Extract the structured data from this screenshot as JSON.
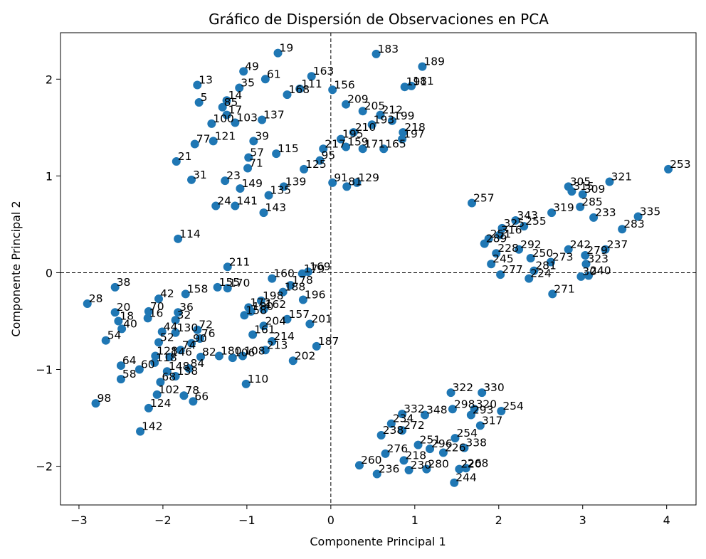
{
  "chart_data": {
    "type": "scatter",
    "title": "Gráfico de Dispersión de Observaciones en PCA",
    "xlabel": "Componente Principal 1",
    "ylabel": "Componente Principal 2",
    "xlim": [
      -3.22,
      4.35
    ],
    "ylim": [
      -2.4,
      2.48
    ],
    "xticks": [
      -3,
      -2,
      -1,
      0,
      1,
      2,
      3,
      4
    ],
    "yticks": [
      -2,
      -1,
      0,
      1,
      2
    ],
    "xtick_labels": [
      "−3",
      "−2",
      "−1",
      "0",
      "1",
      "2",
      "3",
      "4"
    ],
    "ytick_labels": [
      "−2",
      "−1",
      "0",
      "1",
      "2"
    ],
    "reference_lines": {
      "x": 0,
      "y": 0,
      "style": "dashed"
    },
    "grid": false,
    "legend": "none",
    "point_color": "#1f77b4",
    "points": [
      {
        "label": "19",
        "x": -0.63,
        "y": 2.27
      },
      {
        "label": "49",
        "x": -1.04,
        "y": 2.08
      },
      {
        "label": "61",
        "x": -0.78,
        "y": 2.0
      },
      {
        "label": "13",
        "x": -1.59,
        "y": 1.94
      },
      {
        "label": "35",
        "x": -1.09,
        "y": 1.91
      },
      {
        "label": "5",
        "x": -1.57,
        "y": 1.76
      },
      {
        "label": "14",
        "x": -1.24,
        "y": 1.78
      },
      {
        "label": "85",
        "x": -1.29,
        "y": 1.71
      },
      {
        "label": "17",
        "x": -1.24,
        "y": 1.63
      },
      {
        "label": "103",
        "x": -1.14,
        "y": 1.55
      },
      {
        "label": "100",
        "x": -1.42,
        "y": 1.54
      },
      {
        "label": "163",
        "x": -0.23,
        "y": 2.03
      },
      {
        "label": "168",
        "x": -0.52,
        "y": 1.84
      },
      {
        "label": "111",
        "x": -0.37,
        "y": 1.9
      },
      {
        "label": "156",
        "x": 0.02,
        "y": 1.89
      },
      {
        "label": "183",
        "x": 0.54,
        "y": 2.26
      },
      {
        "label": "189",
        "x": 1.09,
        "y": 2.13
      },
      {
        "label": "181",
        "x": 0.96,
        "y": 1.93
      },
      {
        "label": "191",
        "x": 0.88,
        "y": 1.92
      },
      {
        "label": "137",
        "x": -0.82,
        "y": 1.58
      },
      {
        "label": "121",
        "x": -1.4,
        "y": 1.36
      },
      {
        "label": "77",
        "x": -1.62,
        "y": 1.33
      },
      {
        "label": "21",
        "x": -1.84,
        "y": 1.15
      },
      {
        "label": "31",
        "x": -1.66,
        "y": 0.96
      },
      {
        "label": "23",
        "x": -1.26,
        "y": 0.95
      },
      {
        "label": "149",
        "x": -1.08,
        "y": 0.87
      },
      {
        "label": "135",
        "x": -0.74,
        "y": 0.8
      },
      {
        "label": "139",
        "x": -0.56,
        "y": 0.89
      },
      {
        "label": "24",
        "x": -1.37,
        "y": 0.69
      },
      {
        "label": "141",
        "x": -1.14,
        "y": 0.69
      },
      {
        "label": "143",
        "x": -0.8,
        "y": 0.62
      },
      {
        "label": "209",
        "x": 0.18,
        "y": 1.74
      },
      {
        "label": "205",
        "x": 0.38,
        "y": 1.67
      },
      {
        "label": "212",
        "x": 0.59,
        "y": 1.63
      },
      {
        "label": "199",
        "x": 0.73,
        "y": 1.57
      },
      {
        "label": "193",
        "x": 0.49,
        "y": 1.53
      },
      {
        "label": "218",
        "x": 0.86,
        "y": 1.45
      },
      {
        "label": "197",
        "x": 0.85,
        "y": 1.38
      },
      {
        "label": "165",
        "x": 0.63,
        "y": 1.28
      },
      {
        "label": "171",
        "x": 0.38,
        "y": 1.28
      },
      {
        "label": "159",
        "x": 0.18,
        "y": 1.3
      },
      {
        "label": "217",
        "x": -0.09,
        "y": 1.28
      },
      {
        "label": "210",
        "x": 0.27,
        "y": 1.45
      },
      {
        "label": "195",
        "x": 0.12,
        "y": 1.38
      },
      {
        "label": "95",
        "x": -0.13,
        "y": 1.16
      },
      {
        "label": "91",
        "x": 0.02,
        "y": 0.93
      },
      {
        "label": "81",
        "x": 0.19,
        "y": 0.89
      },
      {
        "label": "129",
        "x": 0.31,
        "y": 0.93
      },
      {
        "label": "125",
        "x": -0.32,
        "y": 1.07
      },
      {
        "label": "115",
        "x": -0.65,
        "y": 1.23
      },
      {
        "label": "39",
        "x": -0.92,
        "y": 1.36
      },
      {
        "label": "57",
        "x": -0.98,
        "y": 1.19
      },
      {
        "label": "71",
        "x": -0.99,
        "y": 1.08
      },
      {
        "label": "257",
        "x": 1.68,
        "y": 0.72
      },
      {
        "label": "253",
        "x": 4.02,
        "y": 1.07
      },
      {
        "label": "321",
        "x": 3.32,
        "y": 0.94
      },
      {
        "label": "305",
        "x": 2.83,
        "y": 0.89
      },
      {
        "label": "309",
        "x": 3.0,
        "y": 0.81
      },
      {
        "label": "315",
        "x": 2.87,
        "y": 0.84
      },
      {
        "label": "285",
        "x": 2.97,
        "y": 0.68
      },
      {
        "label": "319",
        "x": 2.63,
        "y": 0.62
      },
      {
        "label": "335",
        "x": 3.66,
        "y": 0.58
      },
      {
        "label": "283",
        "x": 3.47,
        "y": 0.45
      },
      {
        "label": "233",
        "x": 3.13,
        "y": 0.57
      },
      {
        "label": "343",
        "x": 2.2,
        "y": 0.54
      },
      {
        "label": "255",
        "x": 2.3,
        "y": 0.48
      },
      {
        "label": "325",
        "x": 2.04,
        "y": 0.46
      },
      {
        "label": "316",
        "x": 2.01,
        "y": 0.39
      },
      {
        "label": "251",
        "x": 1.88,
        "y": 0.35
      },
      {
        "label": "289",
        "x": 1.83,
        "y": 0.3
      },
      {
        "label": "292",
        "x": 2.24,
        "y": 0.24
      },
      {
        "label": "237",
        "x": 3.27,
        "y": 0.24
      },
      {
        "label": "279",
        "x": 3.03,
        "y": 0.18
      },
      {
        "label": "242",
        "x": 2.83,
        "y": 0.24
      },
      {
        "label": "323",
        "x": 3.04,
        "y": 0.09
      },
      {
        "label": "240",
        "x": 3.07,
        "y": -0.03
      },
      {
        "label": "30",
        "x": 2.98,
        "y": -0.04
      },
      {
        "label": "271",
        "x": 2.64,
        "y": -0.22
      },
      {
        "label": "224",
        "x": 2.36,
        "y": -0.06
      },
      {
        "label": "281",
        "x": 2.42,
        "y": 0.02
      },
      {
        "label": "277",
        "x": 2.02,
        "y": -0.02
      },
      {
        "label": "245",
        "x": 1.91,
        "y": 0.09
      },
      {
        "label": "228",
        "x": 1.97,
        "y": 0.2
      },
      {
        "label": "250",
        "x": 2.38,
        "y": 0.15
      },
      {
        "label": "273",
        "x": 2.62,
        "y": 0.11
      },
      {
        "label": "211",
        "x": -1.23,
        "y": 0.06
      },
      {
        "label": "114",
        "x": -1.82,
        "y": 0.35
      },
      {
        "label": "169",
        "x": -0.27,
        "y": 0.01
      },
      {
        "label": "160",
        "x": -0.7,
        "y": -0.06
      },
      {
        "label": "179",
        "x": -0.34,
        "y": -0.01
      },
      {
        "label": "178",
        "x": -0.48,
        "y": -0.13
      },
      {
        "label": "188",
        "x": -0.57,
        "y": -0.2
      },
      {
        "label": "196",
        "x": -0.33,
        "y": -0.28
      },
      {
        "label": "155",
        "x": -1.35,
        "y": -0.15
      },
      {
        "label": "170",
        "x": -1.23,
        "y": -0.16
      },
      {
        "label": "198",
        "x": -0.83,
        "y": -0.29
      },
      {
        "label": "162",
        "x": -0.8,
        "y": -0.38
      },
      {
        "label": "172",
        "x": -0.98,
        "y": -0.36
      },
      {
        "label": "180",
        "x": -0.95,
        "y": -0.4
      },
      {
        "label": "157",
        "x": -0.52,
        "y": -0.48
      },
      {
        "label": "201",
        "x": -0.25,
        "y": -0.53
      },
      {
        "label": "158",
        "x": -1.03,
        "y": -0.44
      },
      {
        "label": "204",
        "x": -0.8,
        "y": -0.55
      },
      {
        "label": "161",
        "x": -0.93,
        "y": -0.64
      },
      {
        "label": "214",
        "x": -0.7,
        "y": -0.71
      },
      {
        "label": "213",
        "x": -0.78,
        "y": -0.8
      },
      {
        "label": "187",
        "x": -0.17,
        "y": -0.76
      },
      {
        "label": "202",
        "x": -0.45,
        "y": -0.91
      },
      {
        "label": "110",
        "x": -1.01,
        "y": -1.15
      },
      {
        "label": "108",
        "x": -1.05,
        "y": -0.86
      },
      {
        "label": "106",
        "x": -1.17,
        "y": -0.88
      },
      {
        "label": "180b",
        "x": -1.33,
        "y": -0.86
      },
      {
        "label": "38",
        "x": -2.57,
        "y": -0.15
      },
      {
        "label": "28",
        "x": -2.9,
        "y": -0.32
      },
      {
        "label": "20",
        "x": -2.57,
        "y": -0.41
      },
      {
        "label": "18",
        "x": -2.53,
        "y": -0.5
      },
      {
        "label": "40",
        "x": -2.49,
        "y": -0.58
      },
      {
        "label": "54",
        "x": -2.68,
        "y": -0.7
      },
      {
        "label": "64",
        "x": -2.5,
        "y": -0.96
      },
      {
        "label": "58",
        "x": -2.5,
        "y": -1.1
      },
      {
        "label": "98",
        "x": -2.8,
        "y": -1.35
      },
      {
        "label": "142",
        "x": -2.27,
        "y": -1.64
      },
      {
        "label": "124",
        "x": -2.17,
        "y": -1.4
      },
      {
        "label": "102",
        "x": -2.07,
        "y": -1.26
      },
      {
        "label": "78",
        "x": -1.75,
        "y": -1.27
      },
      {
        "label": "66",
        "x": -1.64,
        "y": -1.33
      },
      {
        "label": "68",
        "x": -2.03,
        "y": -1.13
      },
      {
        "label": "138",
        "x": -1.85,
        "y": -1.07
      },
      {
        "label": "148",
        "x": -1.95,
        "y": -1.02
      },
      {
        "label": "60",
        "x": -2.28,
        "y": -1.0
      },
      {
        "label": "84",
        "x": -1.69,
        "y": -0.99
      },
      {
        "label": "70",
        "x": -2.17,
        "y": -0.4
      },
      {
        "label": "42",
        "x": -2.05,
        "y": -0.27
      },
      {
        "label": "158b",
        "x": -1.73,
        "y": -0.22
      },
      {
        "label": "36",
        "x": -1.82,
        "y": -0.41
      },
      {
        "label": "32",
        "x": -1.85,
        "y": -0.49
      },
      {
        "label": "16",
        "x": -2.18,
        "y": -0.47
      },
      {
        "label": "72",
        "x": -1.59,
        "y": -0.59
      },
      {
        "label": "76",
        "x": -1.56,
        "y": -0.68
      },
      {
        "label": "90",
        "x": -1.66,
        "y": -0.73
      },
      {
        "label": "82",
        "x": -1.55,
        "y": -0.87
      },
      {
        "label": "74",
        "x": -1.79,
        "y": -0.8
      },
      {
        "label": "130",
        "x": -1.85,
        "y": -0.62
      },
      {
        "label": "52",
        "x": -2.05,
        "y": -0.72
      },
      {
        "label": "44",
        "x": -2.01,
        "y": -0.61
      },
      {
        "label": "146",
        "x": -1.92,
        "y": -0.87
      },
      {
        "label": "128",
        "x": -2.09,
        "y": -0.86
      },
      {
        "label": "118",
        "x": -2.1,
        "y": -0.93
      },
      {
        "label": "322",
        "x": 1.43,
        "y": -1.24
      },
      {
        "label": "330",
        "x": 1.8,
        "y": -1.24
      },
      {
        "label": "254",
        "x": 2.03,
        "y": -1.43
      },
      {
        "label": "332",
        "x": 0.85,
        "y": -1.46
      },
      {
        "label": "298",
        "x": 1.45,
        "y": -1.41
      },
      {
        "label": "320",
        "x": 1.71,
        "y": -1.41
      },
      {
        "label": "293",
        "x": 1.67,
        "y": -1.47
      },
      {
        "label": "317",
        "x": 1.78,
        "y": -1.58
      },
      {
        "label": "348",
        "x": 1.12,
        "y": -1.47
      },
      {
        "label": "234",
        "x": 0.72,
        "y": -1.56
      },
      {
        "label": "272",
        "x": 0.85,
        "y": -1.63
      },
      {
        "label": "238",
        "x": 0.6,
        "y": -1.68
      },
      {
        "label": "338",
        "x": 1.59,
        "y": -1.81
      },
      {
        "label": "254b",
        "x": 1.48,
        "y": -1.71
      },
      {
        "label": "276",
        "x": 0.65,
        "y": -1.87
      },
      {
        "label": "296",
        "x": 1.18,
        "y": -1.82
      },
      {
        "label": "251b",
        "x": 1.04,
        "y": -1.78
      },
      {
        "label": "226",
        "x": 1.34,
        "y": -1.86
      },
      {
        "label": "218b",
        "x": 0.87,
        "y": -1.94
      },
      {
        "label": "260",
        "x": 0.34,
        "y": -1.99
      },
      {
        "label": "236",
        "x": 0.55,
        "y": -2.08
      },
      {
        "label": "230",
        "x": 0.93,
        "y": -2.04
      },
      {
        "label": "280",
        "x": 1.14,
        "y": -2.03
      },
      {
        "label": "220",
        "x": 1.53,
        "y": -2.03
      },
      {
        "label": "268",
        "x": 1.61,
        "y": -2.02
      },
      {
        "label": "244",
        "x": 1.47,
        "y": -2.17
      }
    ]
  }
}
